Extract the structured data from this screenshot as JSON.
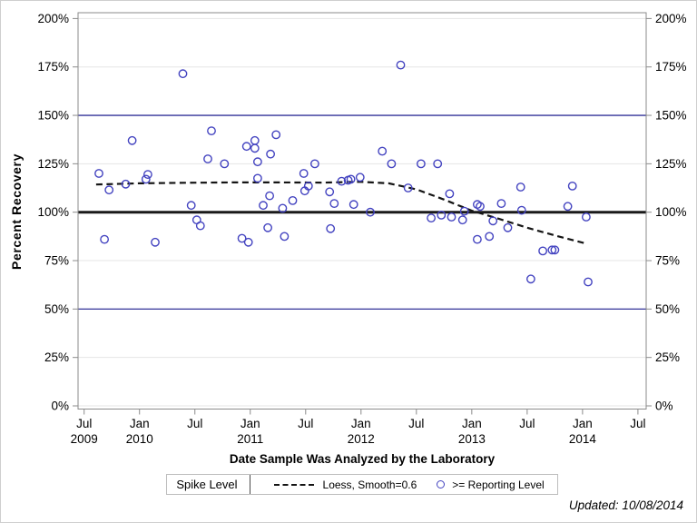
{
  "figure": {
    "updated_note": "Updated: 10/08/2014"
  },
  "chart_data": {
    "type": "scatter",
    "title": "",
    "xlabel": "Date Sample Was Analyzed by the Laboratory",
    "ylabel": "Percent Recovery",
    "x_axis": {
      "unit": "months since 2009-07",
      "range_months": [
        0,
        60
      ],
      "ticks": [
        {
          "t": 0,
          "line1": "Jul",
          "line2": "2009"
        },
        {
          "t": 6,
          "line1": "Jan",
          "line2": "2010"
        },
        {
          "t": 12,
          "line1": "Jul",
          "line2": ""
        },
        {
          "t": 18,
          "line1": "Jan",
          "line2": "2011"
        },
        {
          "t": 24,
          "line1": "Jul",
          "line2": ""
        },
        {
          "t": 30,
          "line1": "Jan",
          "line2": "2012"
        },
        {
          "t": 36,
          "line1": "Jul",
          "line2": ""
        },
        {
          "t": 42,
          "line1": "Jan",
          "line2": "2013"
        },
        {
          "t": 48,
          "line1": "Jul",
          "line2": ""
        },
        {
          "t": 54,
          "line1": "Jan",
          "line2": "2014"
        },
        {
          "t": 60,
          "line1": "Jul",
          "line2": ""
        }
      ]
    },
    "y_axis": {
      "min": 0,
      "max": 200,
      "tick_step": 25,
      "tick_labels": [
        "0%",
        "25%",
        "50%",
        "75%",
        "100%",
        "125%",
        "150%",
        "175%",
        "200%"
      ],
      "labels_on_both_sides": true
    },
    "gridlines_pct": [
      0,
      25,
      50,
      75,
      100,
      125,
      150,
      175,
      200
    ],
    "reference_lines": [
      {
        "name": "spike-level-line",
        "pct": 100,
        "color": "#1a1a1a",
        "width": 3
      },
      {
        "name": "upper-limit-line",
        "pct": 150,
        "color": "#333399",
        "width": 1.3
      },
      {
        "name": "lower-limit-line",
        "pct": 50,
        "color": "#333399",
        "width": 1.3
      }
    ],
    "series": [
      {
        "name": ">= Reporting Level",
        "type": "scatter",
        "marker": "open-circle",
        "color": "#4343c0",
        "points": [
          [
            1.6,
            120
          ],
          [
            2.2,
            86
          ],
          [
            2.7,
            111.5
          ],
          [
            4.5,
            114.5
          ],
          [
            5.2,
            137
          ],
          [
            6.7,
            117
          ],
          [
            6.9,
            119.5
          ],
          [
            7.7,
            84.5
          ],
          [
            10.7,
            171.5
          ],
          [
            11.6,
            103.5
          ],
          [
            12.2,
            96
          ],
          [
            12.6,
            93
          ],
          [
            13.4,
            127.5
          ],
          [
            13.8,
            142
          ],
          [
            15.2,
            125
          ],
          [
            17.1,
            86.5
          ],
          [
            17.6,
            134
          ],
          [
            17.8,
            84.5
          ],
          [
            18.5,
            137
          ],
          [
            18.5,
            133
          ],
          [
            18.8,
            126
          ],
          [
            18.8,
            117.5
          ],
          [
            19.4,
            103.5
          ],
          [
            19.9,
            92
          ],
          [
            20.1,
            108.5
          ],
          [
            20.2,
            130
          ],
          [
            20.8,
            140
          ],
          [
            21.5,
            102
          ],
          [
            21.7,
            87.5
          ],
          [
            22.6,
            106
          ],
          [
            23.8,
            120
          ],
          [
            23.9,
            111
          ],
          [
            24.3,
            113.5
          ],
          [
            25.0,
            125
          ],
          [
            26.6,
            110.5
          ],
          [
            26.7,
            91.5
          ],
          [
            27.1,
            104.5
          ],
          [
            27.9,
            116
          ],
          [
            28.6,
            116.5
          ],
          [
            28.9,
            117
          ],
          [
            29.2,
            104
          ],
          [
            29.9,
            118
          ],
          [
            31.0,
            100
          ],
          [
            32.3,
            131.5
          ],
          [
            33.3,
            125
          ],
          [
            34.3,
            176
          ],
          [
            35.1,
            112.5
          ],
          [
            36.5,
            125
          ],
          [
            37.6,
            97
          ],
          [
            38.3,
            125
          ],
          [
            38.7,
            98.5
          ],
          [
            39.6,
            109.5
          ],
          [
            39.8,
            97.5
          ],
          [
            41.0,
            96
          ],
          [
            41.2,
            100.5
          ],
          [
            42.6,
            104
          ],
          [
            42.6,
            86
          ],
          [
            42.9,
            103
          ],
          [
            43.9,
            87.5
          ],
          [
            44.3,
            95.5
          ],
          [
            45.2,
            104.5
          ],
          [
            45.9,
            92
          ],
          [
            47.3,
            113
          ],
          [
            47.4,
            101
          ],
          [
            48.4,
            65.5
          ],
          [
            49.7,
            80
          ],
          [
            50.7,
            80.5
          ],
          [
            51.0,
            80.5
          ],
          [
            52.4,
            103
          ],
          [
            52.9,
            113.5
          ],
          [
            54.4,
            97.5
          ],
          [
            54.6,
            64
          ]
        ]
      },
      {
        "name": "Loess, Smooth=0.6",
        "type": "line",
        "style": "dashed",
        "color": "#141414",
        "points": [
          [
            1.3,
            114.3
          ],
          [
            6,
            114.9
          ],
          [
            11,
            115.2
          ],
          [
            16,
            115.4
          ],
          [
            21,
            115.4
          ],
          [
            26,
            115.3
          ],
          [
            30,
            115.7
          ],
          [
            33,
            114.9
          ],
          [
            36,
            111.8
          ],
          [
            39,
            106.5
          ],
          [
            42,
            100.8
          ],
          [
            45,
            96.5
          ],
          [
            48,
            92
          ],
          [
            51,
            88
          ],
          [
            54.4,
            83.8
          ]
        ]
      }
    ],
    "legend": {
      "title": "Spike Level",
      "entries": [
        "Loess, Smooth=0.6",
        ">= Reporting Level"
      ],
      "position": "bottom"
    },
    "colors": {
      "marker": "#4343c0",
      "reference_blue": "#333399",
      "spike_line": "#1a1a1a",
      "loess": "#141414",
      "gridline": "#e5e5e5",
      "frame": "#8b8b8b"
    },
    "annotations": [
      "Updated: 10/08/2014"
    ]
  }
}
